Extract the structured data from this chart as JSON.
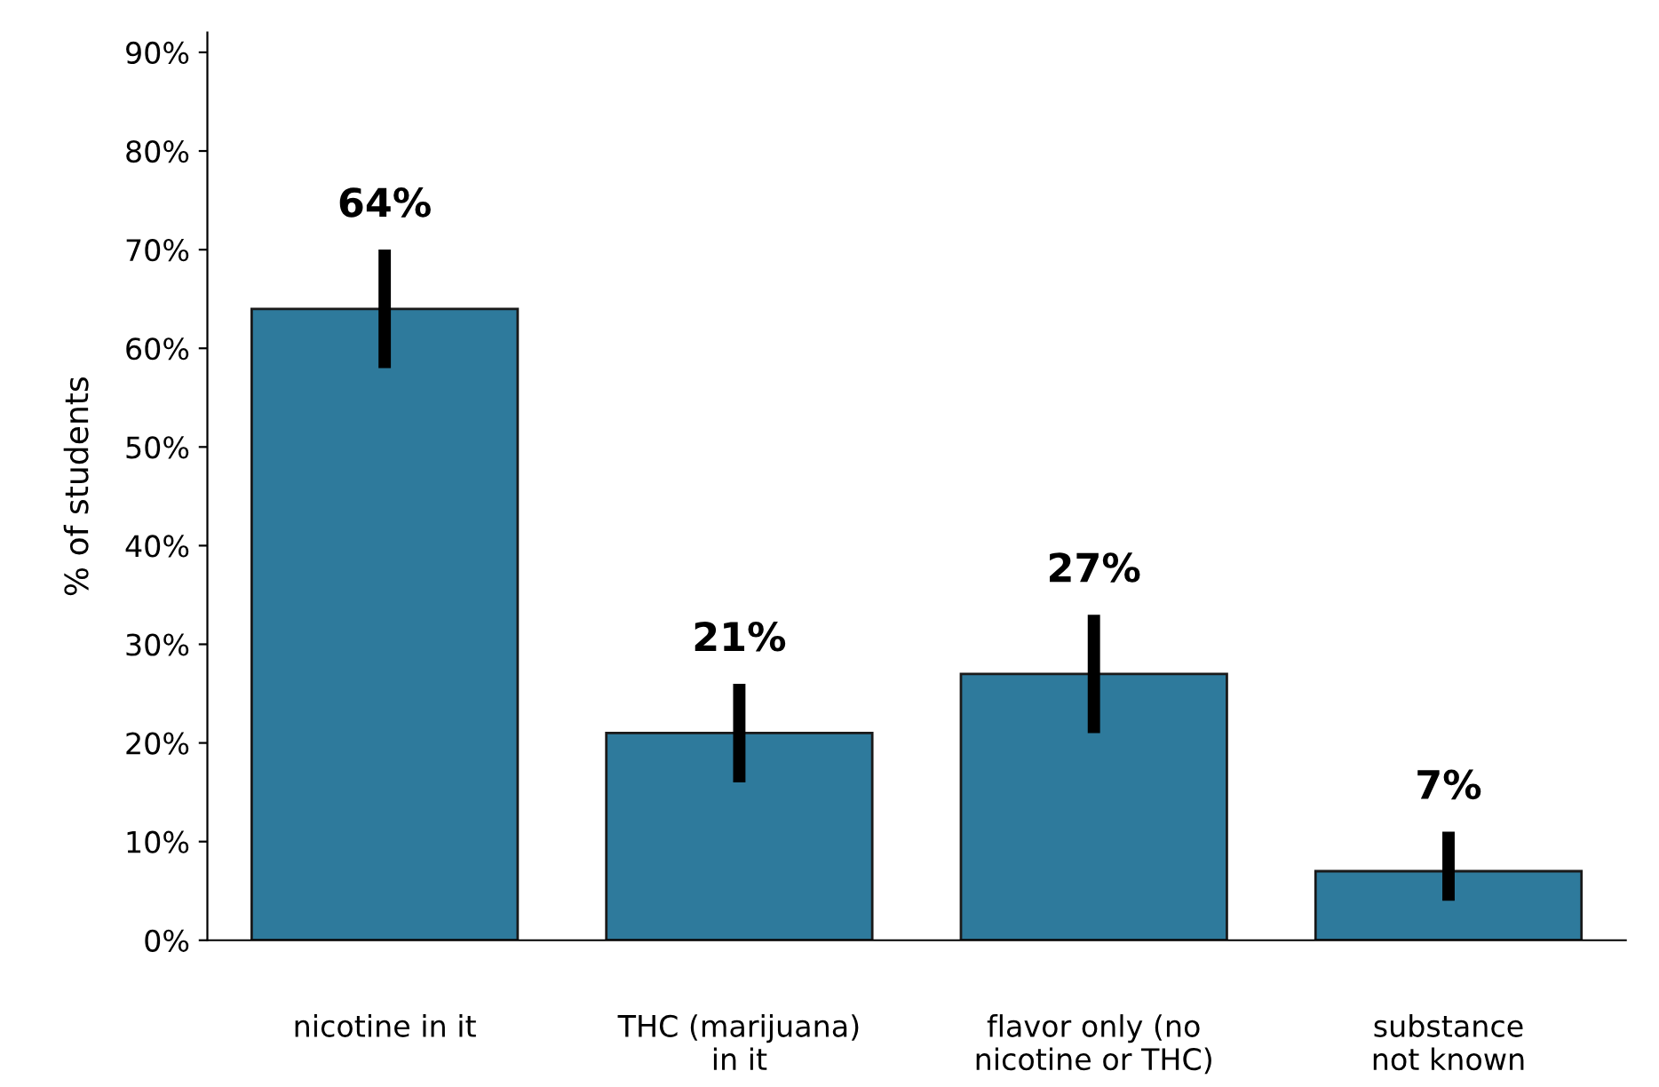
{
  "chart_data": {
    "type": "bar",
    "ylabel": "% of students",
    "categories": [
      "nicotine in it",
      "THC (marijuana)\nin it",
      "flavor only (no\nnicotine or THC)",
      "substance\nnot known"
    ],
    "values": [
      64,
      21,
      27,
      7
    ],
    "errors": [
      [
        58,
        70
      ],
      [
        16,
        26
      ],
      [
        21,
        33
      ],
      [
        4,
        11
      ]
    ],
    "value_labels": [
      "64%",
      "21%",
      "27%",
      "7%"
    ],
    "color": "#2e7a9c",
    "ylim": [
      0,
      92
    ],
    "yticks": [
      {
        "value": 0,
        "label": "0%"
      },
      {
        "value": 10,
        "label": "10%"
      },
      {
        "value": 20,
        "label": "20%"
      },
      {
        "value": 30,
        "label": "30%"
      },
      {
        "value": 40,
        "label": "40%"
      },
      {
        "value": 50,
        "label": "50%"
      },
      {
        "value": 60,
        "label": "60%"
      },
      {
        "value": 70,
        "label": "70%"
      },
      {
        "value": 80,
        "label": "80%"
      },
      {
        "value": 90,
        "label": "90%"
      }
    ],
    "grid": false,
    "legend": false
  }
}
